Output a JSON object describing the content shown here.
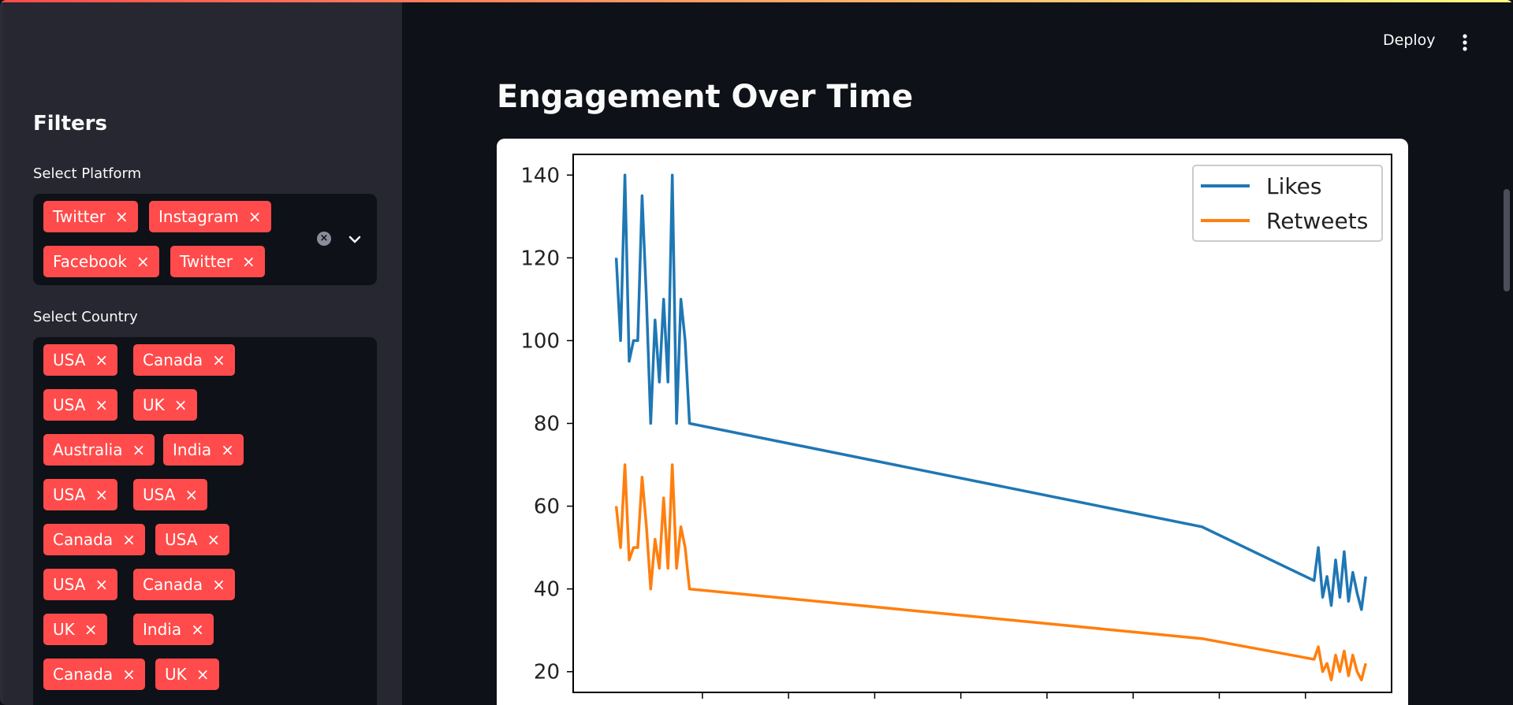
{
  "header": {
    "deploy_label": "Deploy",
    "menu_icon": "more-vertical-icon"
  },
  "sidebar": {
    "title": "Filters",
    "platform": {
      "label": "Select Platform",
      "tags": [
        "Twitter",
        "Instagram",
        "Facebook",
        "Twitter"
      ]
    },
    "country": {
      "label": "Select Country",
      "tags": [
        "USA",
        "Canada",
        "USA",
        "UK",
        "Australia",
        "India",
        "USA",
        "USA",
        "Canada",
        "USA",
        "USA",
        "Canada",
        "UK",
        "India",
        "Canada",
        "UK"
      ]
    },
    "tag_remove_glyph": "×"
  },
  "main": {
    "title": "Engagement Over Time"
  },
  "colors": {
    "accent": "#ff4b4b",
    "likes": "#1f77b4",
    "retweets": "#ff7f0e"
  },
  "chart_data": {
    "type": "line",
    "title": "",
    "xlabel": "",
    "ylabel": "",
    "ylim": [
      15,
      145
    ],
    "yticks": [
      20,
      40,
      60,
      80,
      100,
      120,
      140
    ],
    "legend": "top-right",
    "grid": false,
    "series": [
      {
        "name": "Likes",
        "color": "#1f77b4",
        "points": [
          [
            0.0,
            120
          ],
          [
            0.5,
            100
          ],
          [
            1.0,
            140
          ],
          [
            1.5,
            95
          ],
          [
            2.0,
            100
          ],
          [
            2.5,
            100
          ],
          [
            3.0,
            135
          ],
          [
            3.5,
            110
          ],
          [
            4.0,
            80
          ],
          [
            4.5,
            105
          ],
          [
            5.0,
            90
          ],
          [
            5.5,
            110
          ],
          [
            6.0,
            90
          ],
          [
            6.5,
            140
          ],
          [
            7.0,
            80
          ],
          [
            7.5,
            110
          ],
          [
            8.0,
            100
          ],
          [
            8.5,
            80
          ],
          [
            68.0,
            55
          ],
          [
            81.0,
            42
          ],
          [
            81.5,
            50
          ],
          [
            82.0,
            38
          ],
          [
            82.5,
            43
          ],
          [
            83.0,
            36
          ],
          [
            83.5,
            47
          ],
          [
            84.0,
            38
          ],
          [
            84.5,
            49
          ],
          [
            85.0,
            37
          ],
          [
            85.5,
            44
          ],
          [
            86.0,
            39
          ],
          [
            86.5,
            35
          ],
          [
            87.0,
            43
          ]
        ]
      },
      {
        "name": "Retweets",
        "color": "#ff7f0e",
        "points": [
          [
            0.0,
            60
          ],
          [
            0.5,
            50
          ],
          [
            1.0,
            70
          ],
          [
            1.5,
            47
          ],
          [
            2.0,
            50
          ],
          [
            2.5,
            50
          ],
          [
            3.0,
            67
          ],
          [
            3.5,
            55
          ],
          [
            4.0,
            40
          ],
          [
            4.5,
            52
          ],
          [
            5.0,
            45
          ],
          [
            5.5,
            62
          ],
          [
            6.0,
            45
          ],
          [
            6.5,
            70
          ],
          [
            7.0,
            45
          ],
          [
            7.5,
            55
          ],
          [
            8.0,
            50
          ],
          [
            8.5,
            40
          ],
          [
            68.0,
            28
          ],
          [
            81.0,
            23
          ],
          [
            81.5,
            26
          ],
          [
            82.0,
            20
          ],
          [
            82.5,
            22
          ],
          [
            83.0,
            18
          ],
          [
            83.5,
            24
          ],
          [
            84.0,
            20
          ],
          [
            84.5,
            25
          ],
          [
            85.0,
            19
          ],
          [
            85.5,
            24
          ],
          [
            86.0,
            20
          ],
          [
            86.5,
            18
          ],
          [
            87.0,
            22
          ]
        ]
      }
    ]
  }
}
